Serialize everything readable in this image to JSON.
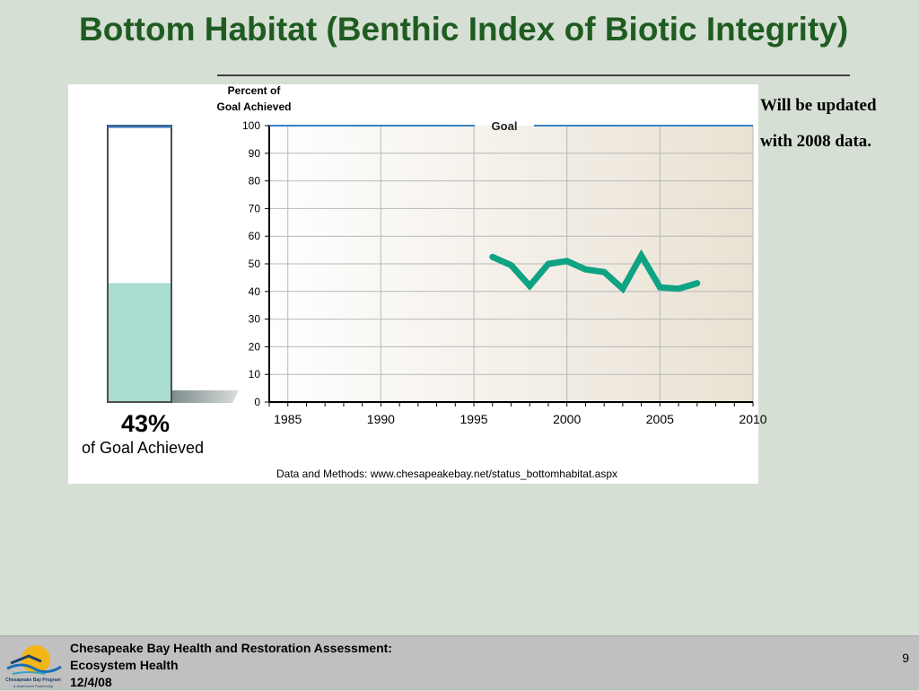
{
  "slide": {
    "title": "Bottom Habitat (Benthic Index of Biotic Integrity)",
    "note": "Will be updated with 2008 data."
  },
  "gauge": {
    "value": 43,
    "percent_label": "43%",
    "caption": "of Goal Achieved"
  },
  "chart_data": {
    "type": "line",
    "ylabel": "Percent of Goal Achieved",
    "ylim": [
      0,
      100
    ],
    "yticks": [
      0,
      10,
      20,
      30,
      40,
      50,
      60,
      70,
      80,
      90,
      100
    ],
    "xlim": [
      1984,
      2010
    ],
    "xticks": [
      1985,
      1990,
      1995,
      2000,
      2005,
      2010
    ],
    "grid": true,
    "goal": {
      "label": "Goal",
      "value": 100
    },
    "series": [
      {
        "x": [
          1996,
          1997,
          1998,
          1999,
          2000,
          2001,
          2002,
          2003,
          2004,
          2005,
          2006,
          2007
        ],
        "y": [
          52.5,
          49.5,
          42,
          50,
          51,
          48,
          47,
          41,
          53,
          41.5,
          41,
          43
        ]
      }
    ],
    "source": "Data and Methods: www.chesapeakebay.net/status_bottomhabitat.aspx"
  },
  "footer": {
    "line1": "Chesapeake Bay Health and Restoration Assessment:",
    "line2": "Ecosystem Health",
    "line3": "12/4/08",
    "page": "9",
    "logo_text": "Chesapeake Bay Program",
    "logo_tagline": "A Watershed Partnership"
  },
  "colors": {
    "title": "#1f5c22",
    "line": "#0ea383",
    "goal": "#3a82c2",
    "gauge_fill": "#abdcd2"
  }
}
